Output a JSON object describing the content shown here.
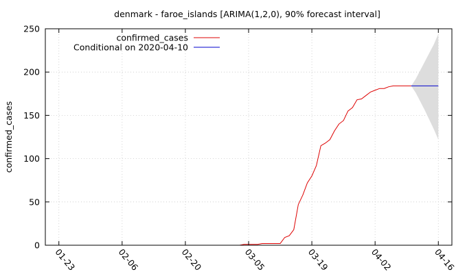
{
  "chart_data": {
    "type": "line",
    "title": "denmark - faroe_islands [ARIMA(1,2,0), 90% forecast interval]",
    "xlabel": "",
    "ylabel": "confirmed_cases",
    "x_ticks": [
      "01-23",
      "02-06",
      "02-20",
      "03-05",
      "03-19",
      "04-02",
      "04-16"
    ],
    "x_tick_days": [
      0,
      14,
      28,
      42,
      56,
      70,
      84
    ],
    "xlim_days": [
      -3,
      87
    ],
    "ylim": [
      0,
      250
    ],
    "y_ticks": [
      0,
      50,
      100,
      150,
      200,
      250
    ],
    "grid": true,
    "legend_position": "top-left",
    "series": [
      {
        "name": "confirmed_cases",
        "color": "#dd0000",
        "points": [
          [
            0,
            0
          ],
          [
            1,
            0
          ],
          [
            2,
            0
          ],
          [
            3,
            0
          ],
          [
            4,
            0
          ],
          [
            5,
            0
          ],
          [
            6,
            0
          ],
          [
            7,
            0
          ],
          [
            8,
            0
          ],
          [
            9,
            0
          ],
          [
            10,
            0
          ],
          [
            11,
            0
          ],
          [
            12,
            0
          ],
          [
            13,
            0
          ],
          [
            14,
            0
          ],
          [
            15,
            0
          ],
          [
            16,
            0
          ],
          [
            17,
            0
          ],
          [
            18,
            0
          ],
          [
            19,
            0
          ],
          [
            20,
            0
          ],
          [
            21,
            0
          ],
          [
            22,
            0
          ],
          [
            23,
            0
          ],
          [
            24,
            0
          ],
          [
            25,
            0
          ],
          [
            26,
            0
          ],
          [
            27,
            0
          ],
          [
            28,
            0
          ],
          [
            29,
            0
          ],
          [
            30,
            0
          ],
          [
            31,
            0
          ],
          [
            32,
            0
          ],
          [
            33,
            0
          ],
          [
            34,
            0
          ],
          [
            35,
            0
          ],
          [
            36,
            0
          ],
          [
            37,
            0
          ],
          [
            38,
            0
          ],
          [
            39,
            0
          ],
          [
            40,
            0
          ],
          [
            41,
            1
          ],
          [
            42,
            1
          ],
          [
            43,
            1
          ],
          [
            44,
            1
          ],
          [
            45,
            2
          ],
          [
            46,
            2
          ],
          [
            47,
            2
          ],
          [
            48,
            2
          ],
          [
            49,
            2
          ],
          [
            50,
            9
          ],
          [
            51,
            11
          ],
          [
            52,
            18
          ],
          [
            53,
            47
          ],
          [
            54,
            58
          ],
          [
            55,
            72
          ],
          [
            56,
            80
          ],
          [
            57,
            92
          ],
          [
            58,
            115
          ],
          [
            59,
            118
          ],
          [
            60,
            122
          ],
          [
            61,
            132
          ],
          [
            62,
            140
          ],
          [
            63,
            144
          ],
          [
            64,
            155
          ],
          [
            65,
            159
          ],
          [
            66,
            168
          ],
          [
            67,
            169
          ],
          [
            68,
            173
          ],
          [
            69,
            177
          ],
          [
            70,
            179
          ],
          [
            71,
            181
          ],
          [
            72,
            181
          ],
          [
            73,
            183
          ],
          [
            74,
            184
          ],
          [
            75,
            184
          ],
          [
            76,
            184
          ],
          [
            77,
            184
          ],
          [
            78,
            184
          ]
        ]
      },
      {
        "name": "Conditional on 2020-04-10",
        "color": "#0000cc",
        "points": [
          [
            78,
            184
          ],
          [
            84,
            184
          ]
        ]
      }
    ],
    "forecast_interval": {
      "color": "#dddddd",
      "x": [
        78,
        79,
        80,
        81,
        82,
        83,
        84
      ],
      "lower": [
        184,
        176,
        166,
        156,
        145,
        134,
        122
      ],
      "upper": [
        184,
        192,
        202,
        212,
        222,
        232,
        244
      ]
    }
  }
}
